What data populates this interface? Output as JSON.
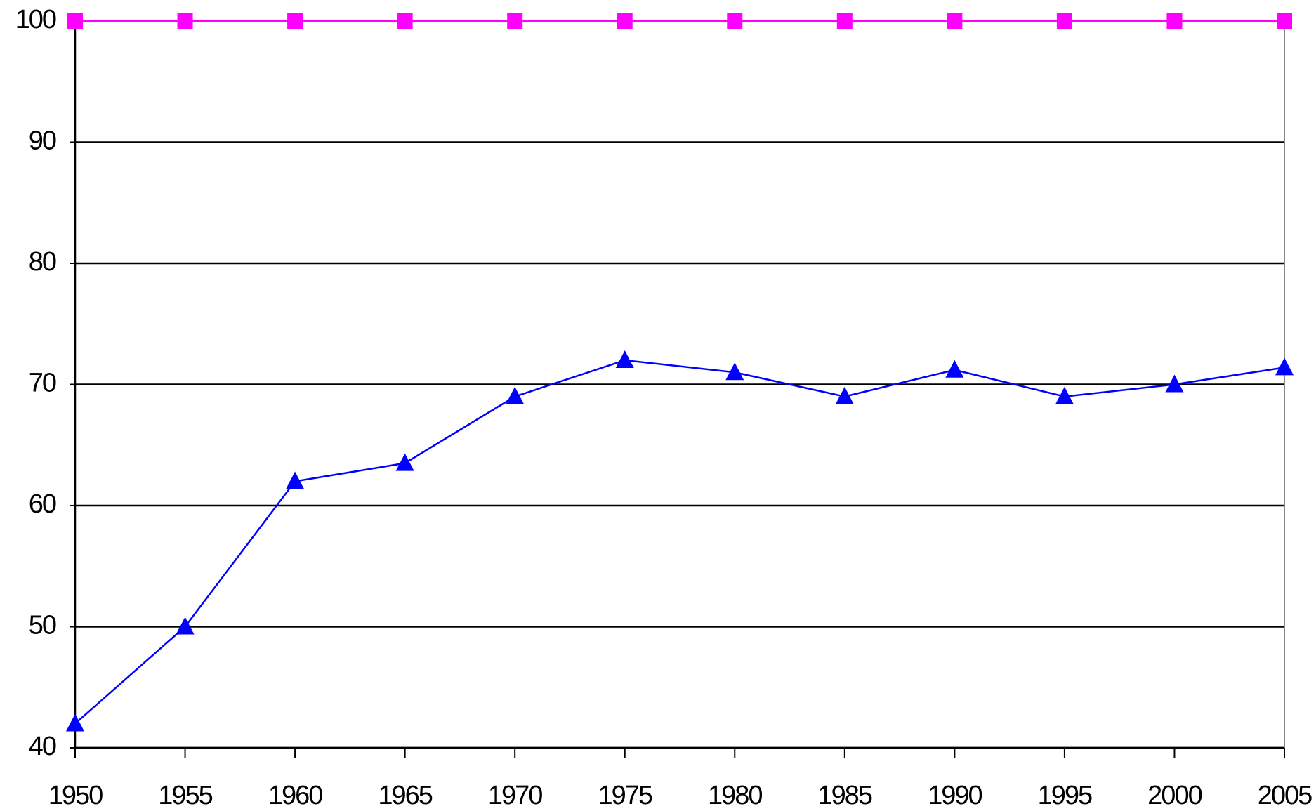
{
  "chart_data": {
    "type": "line",
    "x": [
      1950,
      1955,
      1960,
      1965,
      1970,
      1975,
      1980,
      1985,
      1990,
      1995,
      2000,
      2005
    ],
    "xlim": [
      1950,
      2005
    ],
    "xticks": [
      1950,
      1955,
      1960,
      1965,
      1970,
      1975,
      1980,
      1985,
      1990,
      1995,
      2000,
      2005
    ],
    "ylim": [
      40,
      100
    ],
    "yticks": [
      40,
      50,
      60,
      70,
      80,
      90,
      100
    ],
    "grid": true,
    "series": [
      {
        "color": "#ff00ff",
        "marker": "square",
        "values": [
          100,
          100,
          100,
          100,
          100,
          100,
          100,
          100,
          100,
          100,
          100,
          100
        ]
      },
      {
        "color": "#0000ff",
        "marker": "triangle",
        "values": [
          42,
          50,
          62,
          63.5,
          69,
          72,
          71,
          69,
          71.2,
          69,
          70,
          71.4
        ]
      }
    ]
  }
}
